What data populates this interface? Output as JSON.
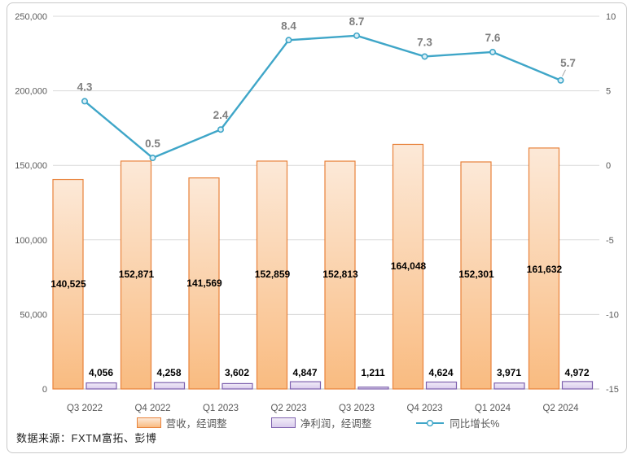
{
  "source_note": "数据来源：FXTM富拓、彭博",
  "legend": {
    "items": [
      {
        "label": "营收，经调整",
        "type": "bar"
      },
      {
        "label": "净利润，经调整",
        "type": "bar"
      },
      {
        "label": "同比增长%",
        "type": "line"
      }
    ]
  },
  "colors": {
    "bar_revenue_top": "#FCE9D8",
    "bar_revenue_bottom": "#F9BB80",
    "bar_revenue_border": "#E8823B",
    "bar_profit_top": "#F1ECF8",
    "bar_profit_bottom": "#D9CBEC",
    "bar_profit_border": "#7E61AE",
    "line": "#3FA6C8",
    "marker_fill": "#DCEFF7",
    "gridline": "#D9D9D9",
    "axis_line": "#BFBFBF",
    "tick_text": "#595959",
    "line_label": "#7F7F7F",
    "bar_label": "#000000",
    "frame_border": "#C9C9C9"
  },
  "chart_data": {
    "type": "combo",
    "title": "",
    "categories": [
      "Q3 2022",
      "Q4 2022",
      "Q1 2023",
      "Q2 2023",
      "Q3 2023",
      "Q4 2023",
      "Q1 2024",
      "Q2 2024"
    ],
    "series": [
      {
        "name": "营收，经调整",
        "type": "bar",
        "axis": "left",
        "values": [
          140525,
          152871,
          141569,
          152859,
          152813,
          164048,
          152301,
          161632
        ],
        "labels": [
          "140,525",
          "152,871",
          "141,569",
          "152,859",
          "152,813",
          "164,048",
          "152,301",
          "161,632"
        ]
      },
      {
        "name": "净利润，经调整",
        "type": "bar",
        "axis": "left",
        "values": [
          4056,
          4258,
          3602,
          4847,
          1211,
          4624,
          3971,
          4972
        ],
        "labels": [
          "4,056",
          "4,258",
          "3,602",
          "4,847",
          "1,211",
          "4,624",
          "3,971",
          "4,972"
        ]
      },
      {
        "name": "同比增长%",
        "type": "line",
        "axis": "right",
        "values": [
          4.3,
          0.5,
          2.4,
          8.4,
          8.7,
          7.3,
          7.6,
          5.7
        ],
        "labels": [
          "4.3",
          "0.5",
          "2.4",
          "8.4",
          "8.7",
          "7.3",
          "7.6",
          "5.7"
        ]
      }
    ],
    "left_axis": {
      "min": 0,
      "max": 250000,
      "step": 50000,
      "tick_labels": [
        "250,000",
        "200,000",
        "150,000",
        "100,000",
        "50,000",
        "0"
      ]
    },
    "right_axis": {
      "min": -15,
      "max": 10,
      "step": 5,
      "tick_labels": [
        "10",
        "5",
        "0",
        "-5",
        "-10",
        "-15"
      ]
    },
    "grid": true,
    "legend_position": "bottom"
  }
}
